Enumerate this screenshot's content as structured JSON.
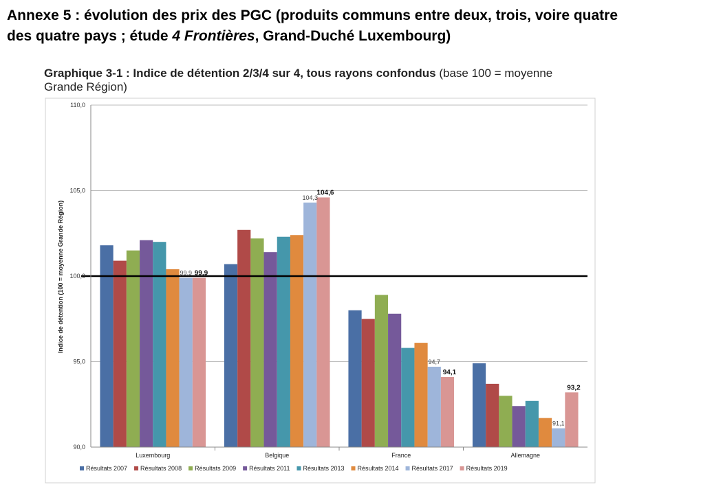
{
  "annex": {
    "line1": "Annexe 5 : évolution des prix des PGC (produits communs entre deux, trois, voire quatre",
    "line2_a": "des quatre pays ; étude ",
    "line2_b": "4 Frontières",
    "line2_c": ", Grand-Duché Luxembourg)"
  },
  "chart_data": {
    "type": "bar",
    "title": "Graphique 3-1 : Indice de détention 2/3/4 sur 4, tous rayons confondus",
    "subtitle": "(base 100 = moyenne Grande Région)",
    "ylabel": "Indice de détention (100 = moyenne Grande Région)",
    "xlabel": "",
    "ylim": [
      90,
      110
    ],
    "yticks": [
      "90,0",
      "95,0",
      "100,0",
      "105,0",
      "110,0"
    ],
    "reference_line": 100,
    "grid": true,
    "legend_position": "bottom",
    "categories": [
      "Luxembourg",
      "Belgique",
      "France",
      "Allemagne"
    ],
    "series": [
      {
        "name": "Résultats 2007",
        "color": "#4a6fa5",
        "values": [
          101.8,
          100.7,
          98.0,
          94.9
        ]
      },
      {
        "name": "Résultats 2008",
        "color": "#b04a48",
        "values": [
          100.9,
          102.7,
          97.5,
          93.7
        ]
      },
      {
        "name": "Résultats 2009",
        "color": "#8fad52",
        "values": [
          101.5,
          102.2,
          98.9,
          93.0
        ]
      },
      {
        "name": "Résultats 2011",
        "color": "#75599a",
        "values": [
          102.1,
          101.4,
          97.8,
          92.4
        ]
      },
      {
        "name": "Résultats 2013",
        "color": "#4597ab",
        "values": [
          102.0,
          102.3,
          95.8,
          92.7
        ]
      },
      {
        "name": "Résultats 2014",
        "color": "#e08a3e",
        "values": [
          100.4,
          102.4,
          96.1,
          91.7
        ]
      },
      {
        "name": "Résultats 2017",
        "color": "#9eb5da",
        "values": [
          99.9,
          104.3,
          94.7,
          91.1
        ]
      },
      {
        "name": "Résultats 2019",
        "color": "#d99694",
        "values": [
          99.9,
          104.6,
          94.1,
          93.2
        ]
      }
    ],
    "data_labels": [
      {
        "series": 6,
        "category": 0,
        "text": "99,9",
        "bold": false
      },
      {
        "series": 7,
        "category": 0,
        "text": "99,9",
        "bold": true
      },
      {
        "series": 6,
        "category": 1,
        "text": "104,3",
        "bold": false
      },
      {
        "series": 7,
        "category": 1,
        "text": "104,6",
        "bold": true
      },
      {
        "series": 6,
        "category": 2,
        "text": "94,7",
        "bold": false
      },
      {
        "series": 7,
        "category": 2,
        "text": "94,1",
        "bold": true
      },
      {
        "series": 6,
        "category": 3,
        "text": "91,1",
        "bold": false
      },
      {
        "series": 7,
        "category": 3,
        "text": "93,2",
        "bold": true
      }
    ]
  }
}
